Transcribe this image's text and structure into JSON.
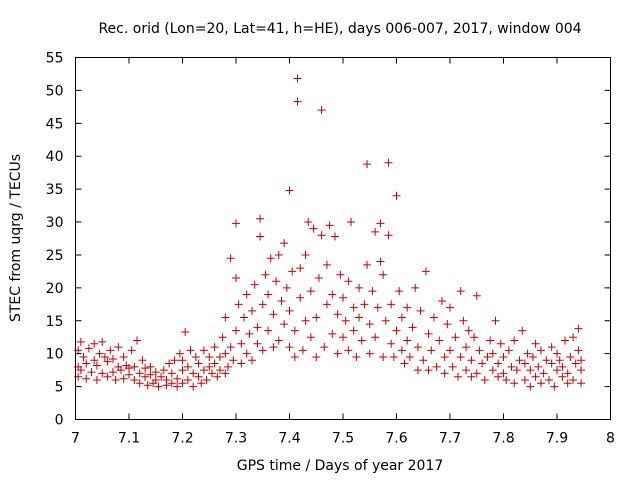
{
  "chart_data": {
    "type": "scatter",
    "title": "Rec. orid (Lon=20, Lat=41, h=HE), days 006-007, 2017, window 004",
    "xlabel": "GPS time / Days of year 2017",
    "ylabel": "STEC from uqrg / TECUs",
    "xlim": [
      7,
      8
    ],
    "ylim": [
      0,
      55
    ],
    "xticks": [
      "7",
      "7.1",
      "7.2",
      "7.3",
      "7.4",
      "7.5",
      "7.6",
      "7.7",
      "7.8",
      "7.9",
      "8"
    ],
    "yticks": [
      "0",
      "5",
      "10",
      "15",
      "20",
      "25",
      "30",
      "35",
      "40",
      "45",
      "50",
      "55"
    ],
    "grid": false,
    "legend": "none",
    "marker_color": "#cc0000",
    "series": [
      {
        "points": [
          [
            7.005,
            6.5
          ],
          [
            7.005,
            8.0
          ],
          [
            7.005,
            10.5
          ],
          [
            7.01,
            11.8
          ],
          [
            7.01,
            7.5
          ],
          [
            7.015,
            9.5
          ],
          [
            7.02,
            6.2
          ],
          [
            7.02,
            8.5
          ],
          [
            7.025,
            10.8
          ],
          [
            7.03,
            7.2
          ],
          [
            7.035,
            9.0
          ],
          [
            7.035,
            11.5
          ],
          [
            7.04,
            6.0
          ],
          [
            7.04,
            8.2
          ],
          [
            7.045,
            10.0
          ],
          [
            7.05,
            11.8
          ],
          [
            7.05,
            7.0
          ],
          [
            7.055,
            9.5
          ],
          [
            7.06,
            6.5
          ],
          [
            7.06,
            8.8
          ],
          [
            7.065,
            10.5
          ],
          [
            7.07,
            7.2
          ],
          [
            7.07,
            9.2
          ],
          [
            7.075,
            6.0
          ],
          [
            7.08,
            8.0
          ],
          [
            7.08,
            11.0
          ],
          [
            7.085,
            7.5
          ],
          [
            7.09,
            6.2
          ],
          [
            7.09,
            9.5
          ],
          [
            7.095,
            8.2
          ],
          [
            7.1,
            6.8
          ],
          [
            7.1,
            7.8
          ],
          [
            7.105,
            10.5
          ],
          [
            7.11,
            6.0
          ],
          [
            7.11,
            8.0
          ],
          [
            7.115,
            12.0
          ],
          [
            7.12,
            7.0
          ],
          [
            7.12,
            5.5
          ],
          [
            7.125,
            9.0
          ],
          [
            7.13,
            6.5
          ],
          [
            7.13,
            7.8
          ],
          [
            7.135,
            5.2
          ],
          [
            7.14,
            6.8
          ],
          [
            7.14,
            8.0
          ],
          [
            7.145,
            5.5
          ],
          [
            7.15,
            7.2
          ],
          [
            7.15,
            6.0
          ],
          [
            7.155,
            5.0
          ],
          [
            7.16,
            6.5
          ],
          [
            7.165,
            7.5
          ],
          [
            7.17,
            5.2
          ],
          [
            7.17,
            6.0
          ],
          [
            7.175,
            8.5
          ],
          [
            7.18,
            5.5
          ],
          [
            7.18,
            7.0
          ],
          [
            7.185,
            9.0
          ],
          [
            7.19,
            5.0
          ],
          [
            7.19,
            6.2
          ],
          [
            7.195,
            10.0
          ],
          [
            7.2,
            5.5
          ],
          [
            7.2,
            7.5
          ],
          [
            7.2,
            9.0
          ],
          [
            7.205,
            13.3
          ],
          [
            7.21,
            6.0
          ],
          [
            7.21,
            8.0
          ],
          [
            7.215,
            10.5
          ],
          [
            7.22,
            5.0
          ],
          [
            7.22,
            7.0
          ],
          [
            7.225,
            9.5
          ],
          [
            7.23,
            6.5
          ],
          [
            7.23,
            8.5
          ],
          [
            7.235,
            5.5
          ],
          [
            7.24,
            7.5
          ],
          [
            7.24,
            10.5
          ],
          [
            7.245,
            6.0
          ],
          [
            7.25,
            8.0
          ],
          [
            7.25,
            9.5
          ],
          [
            7.255,
            7.0
          ],
          [
            7.26,
            8.5
          ],
          [
            7.26,
            11.0
          ],
          [
            7.265,
            6.5
          ],
          [
            7.27,
            7.5
          ],
          [
            7.27,
            9.5
          ],
          [
            7.275,
            12.5
          ],
          [
            7.28,
            7.0
          ],
          [
            7.28,
            10.0
          ],
          [
            7.28,
            15.5
          ],
          [
            7.285,
            8.0
          ],
          [
            7.29,
            11.0
          ],
          [
            7.29,
            24.5
          ],
          [
            7.295,
            9.0
          ],
          [
            7.3,
            13.5
          ],
          [
            7.3,
            21.5
          ],
          [
            7.3,
            29.8
          ],
          [
            7.305,
            17.5
          ],
          [
            7.31,
            8.5
          ],
          [
            7.31,
            11.5
          ],
          [
            7.315,
            15.5
          ],
          [
            7.32,
            19.0
          ],
          [
            7.32,
            10.0
          ],
          [
            7.325,
            13.0
          ],
          [
            7.33,
            9.0
          ],
          [
            7.33,
            16.5
          ],
          [
            7.335,
            20.5
          ],
          [
            7.34,
            11.5
          ],
          [
            7.34,
            14.0
          ],
          [
            7.345,
            30.5
          ],
          [
            7.345,
            27.8
          ],
          [
            7.35,
            10.5
          ],
          [
            7.35,
            17.5
          ],
          [
            7.355,
            22.0
          ],
          [
            7.36,
            13.5
          ],
          [
            7.36,
            19.0
          ],
          [
            7.365,
            24.5
          ],
          [
            7.37,
            11.0
          ],
          [
            7.37,
            16.0
          ],
          [
            7.375,
            21.0
          ],
          [
            7.38,
            25.0
          ],
          [
            7.38,
            12.0
          ],
          [
            7.385,
            18.0
          ],
          [
            7.39,
            14.5
          ],
          [
            7.39,
            26.8
          ],
          [
            7.395,
            20.0
          ],
          [
            7.4,
            34.8
          ],
          [
            7.4,
            11.0
          ],
          [
            7.4,
            16.5
          ],
          [
            7.405,
            22.5
          ],
          [
            7.41,
            9.5
          ],
          [
            7.41,
            13.5
          ],
          [
            7.415,
            51.8
          ],
          [
            7.415,
            48.3
          ],
          [
            7.42,
            18.5
          ],
          [
            7.42,
            23.0
          ],
          [
            7.425,
            10.5
          ],
          [
            7.43,
            15.0
          ],
          [
            7.43,
            25.0
          ],
          [
            7.435,
            30.0
          ],
          [
            7.44,
            12.5
          ],
          [
            7.44,
            19.5
          ],
          [
            7.445,
            29.0
          ],
          [
            7.45,
            9.5
          ],
          [
            7.45,
            15.5
          ],
          [
            7.455,
            21.5
          ],
          [
            7.46,
            47.0
          ],
          [
            7.46,
            28.0
          ],
          [
            7.465,
            11.0
          ],
          [
            7.47,
            17.5
          ],
          [
            7.47,
            23.5
          ],
          [
            7.475,
            29.5
          ],
          [
            7.48,
            13.0
          ],
          [
            7.48,
            19.0
          ],
          [
            7.485,
            27.8
          ],
          [
            7.49,
            10.0
          ],
          [
            7.49,
            16.0
          ],
          [
            7.495,
            22.0
          ],
          [
            7.5,
            12.5
          ],
          [
            7.5,
            18.5
          ],
          [
            7.505,
            15.0
          ],
          [
            7.51,
            10.5
          ],
          [
            7.51,
            21.0
          ],
          [
            7.515,
            30.0
          ],
          [
            7.52,
            13.5
          ],
          [
            7.52,
            17.0
          ],
          [
            7.525,
            9.5
          ],
          [
            7.53,
            15.5
          ],
          [
            7.53,
            20.0
          ],
          [
            7.535,
            12.0
          ],
          [
            7.54,
            17.5
          ],
          [
            7.545,
            38.8
          ],
          [
            7.545,
            23.5
          ],
          [
            7.55,
            10.0
          ],
          [
            7.55,
            14.5
          ],
          [
            7.555,
            19.5
          ],
          [
            7.56,
            28.5
          ],
          [
            7.56,
            12.5
          ],
          [
            7.565,
            17.0
          ],
          [
            7.57,
            29.8
          ],
          [
            7.57,
            24.0
          ],
          [
            7.575,
            9.5
          ],
          [
            7.575,
            22.0
          ],
          [
            7.58,
            15.0
          ],
          [
            7.585,
            39.0
          ],
          [
            7.585,
            28.0
          ],
          [
            7.59,
            11.5
          ],
          [
            7.59,
            17.5
          ],
          [
            7.595,
            9.5
          ],
          [
            7.6,
            34.0
          ],
          [
            7.6,
            13.5
          ],
          [
            7.605,
            19.5
          ],
          [
            7.61,
            10.5
          ],
          [
            7.61,
            15.5
          ],
          [
            7.615,
            8.5
          ],
          [
            7.62,
            12.0
          ],
          [
            7.62,
            17.0
          ],
          [
            7.625,
            9.5
          ],
          [
            7.63,
            14.0
          ],
          [
            7.635,
            20.0
          ],
          [
            7.64,
            11.0
          ],
          [
            7.64,
            7.5
          ],
          [
            7.645,
            16.5
          ],
          [
            7.65,
            9.0
          ],
          [
            7.655,
            22.5
          ],
          [
            7.66,
            13.0
          ],
          [
            7.66,
            7.5
          ],
          [
            7.665,
            10.5
          ],
          [
            7.67,
            15.5
          ],
          [
            7.675,
            8.0
          ],
          [
            7.68,
            12.0
          ],
          [
            7.685,
            18.0
          ],
          [
            7.69,
            9.5
          ],
          [
            7.69,
            7.0
          ],
          [
            7.695,
            14.5
          ],
          [
            7.7,
            10.5
          ],
          [
            7.7,
            17.0
          ],
          [
            7.705,
            8.0
          ],
          [
            7.71,
            12.5
          ],
          [
            7.715,
            6.5
          ],
          [
            7.72,
            9.5
          ],
          [
            7.72,
            19.5
          ],
          [
            7.725,
            15.0
          ],
          [
            7.73,
            7.5
          ],
          [
            7.73,
            11.0
          ],
          [
            7.735,
            13.5
          ],
          [
            7.74,
            6.5
          ],
          [
            7.74,
            9.0
          ],
          [
            7.745,
            12.5
          ],
          [
            7.75,
            18.8
          ],
          [
            7.75,
            7.0
          ],
          [
            7.755,
            10.5
          ],
          [
            7.76,
            8.5
          ],
          [
            7.765,
            6.0
          ],
          [
            7.77,
            9.5
          ],
          [
            7.775,
            12.0
          ],
          [
            7.78,
            7.5
          ],
          [
            7.78,
            10.0
          ],
          [
            7.785,
            15.0
          ],
          [
            7.79,
            6.5
          ],
          [
            7.79,
            8.5
          ],
          [
            7.795,
            11.5
          ],
          [
            7.8,
            7.0
          ],
          [
            7.8,
            9.5
          ],
          [
            7.805,
            6.0
          ],
          [
            7.81,
            10.5
          ],
          [
            7.815,
            8.0
          ],
          [
            7.82,
            5.5
          ],
          [
            7.82,
            12.0
          ],
          [
            7.825,
            7.5
          ],
          [
            7.83,
            9.0
          ],
          [
            7.835,
            13.5
          ],
          [
            7.84,
            6.0
          ],
          [
            7.84,
            8.5
          ],
          [
            7.845,
            10.0
          ],
          [
            7.85,
            5.0
          ],
          [
            7.85,
            7.5
          ],
          [
            7.855,
            9.5
          ],
          [
            7.86,
            6.5
          ],
          [
            7.86,
            11.5
          ],
          [
            7.865,
            8.0
          ],
          [
            7.87,
            5.5
          ],
          [
            7.87,
            10.5
          ],
          [
            7.875,
            7.0
          ],
          [
            7.88,
            9.0
          ],
          [
            7.885,
            6.0
          ],
          [
            7.89,
            8.5
          ],
          [
            7.89,
            11.0
          ],
          [
            7.895,
            5.0
          ],
          [
            7.9,
            7.5
          ],
          [
            7.9,
            10.0
          ],
          [
            7.905,
            9.0
          ],
          [
            7.91,
            6.5
          ],
          [
            7.91,
            8.0
          ],
          [
            7.915,
            12.0
          ],
          [
            7.92,
            5.5
          ],
          [
            7.92,
            7.0
          ],
          [
            7.925,
            9.5
          ],
          [
            7.93,
            12.5
          ],
          [
            7.93,
            6.0
          ],
          [
            7.935,
            8.5
          ],
          [
            7.94,
            10.5
          ],
          [
            7.94,
            13.8
          ],
          [
            7.945,
            5.5
          ],
          [
            7.945,
            7.5
          ],
          [
            7.945,
            9.0
          ]
        ]
      }
    ]
  }
}
